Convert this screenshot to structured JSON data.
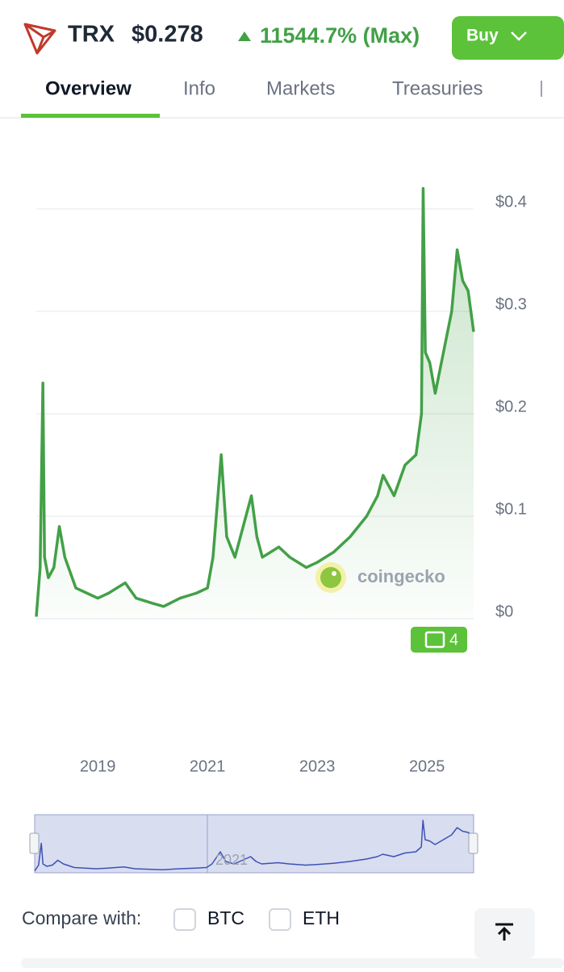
{
  "header": {
    "symbol": "TRX",
    "price": "$0.278",
    "change": "11544.7% (Max)",
    "buy": "Buy"
  },
  "tabs": [
    "Overview",
    "Info",
    "Markets",
    "Treasuries"
  ],
  "chart_data": {
    "type": "line",
    "x": [
      2017.88,
      2017.95,
      2018.0,
      2018.03,
      2018.1,
      2018.2,
      2018.3,
      2018.4,
      2018.6,
      2018.8,
      2019.0,
      2019.2,
      2019.5,
      2019.7,
      2020.0,
      2020.2,
      2020.5,
      2020.8,
      2021.0,
      2021.1,
      2021.25,
      2021.35,
      2021.5,
      2021.7,
      2021.8,
      2021.9,
      2022.0,
      2022.3,
      2022.5,
      2022.8,
      2023.0,
      2023.3,
      2023.6,
      2023.9,
      2024.1,
      2024.2,
      2024.4,
      2024.6,
      2024.8,
      2024.9,
      2024.93,
      2024.97,
      2025.05,
      2025.15,
      2025.3,
      2025.45,
      2025.55,
      2025.65,
      2025.75,
      2025.85
    ],
    "series": [
      {
        "color": "#43a047",
        "values": [
          0.002,
          0.05,
          0.23,
          0.06,
          0.04,
          0.05,
          0.09,
          0.06,
          0.03,
          0.025,
          0.02,
          0.025,
          0.035,
          0.02,
          0.015,
          0.012,
          0.02,
          0.025,
          0.03,
          0.06,
          0.16,
          0.08,
          0.06,
          0.1,
          0.12,
          0.08,
          0.06,
          0.07,
          0.06,
          0.05,
          0.055,
          0.065,
          0.08,
          0.1,
          0.12,
          0.14,
          0.12,
          0.15,
          0.16,
          0.2,
          0.42,
          0.26,
          0.25,
          0.22,
          0.26,
          0.3,
          0.36,
          0.33,
          0.32,
          0.28
        ]
      }
    ],
    "xlim": [
      2017.88,
      2025.85
    ],
    "xticks": [
      2019,
      2021,
      2023,
      2025
    ],
    "ylim": [
      0,
      0.44
    ],
    "yticks": [
      {
        "value": 0,
        "label": "$0"
      },
      {
        "value": 0.1,
        "label": "$0.1"
      },
      {
        "value": 0.2,
        "label": "$0.2"
      },
      {
        "value": 0.3,
        "label": "$0.3"
      },
      {
        "value": 0.4,
        "label": "$0.4"
      }
    ],
    "grid": true,
    "watermark": "coingecko",
    "news_count": 4,
    "navigator_label": "2021"
  },
  "compare": {
    "label": "Compare with:",
    "options": [
      "BTC",
      "ETH"
    ]
  }
}
